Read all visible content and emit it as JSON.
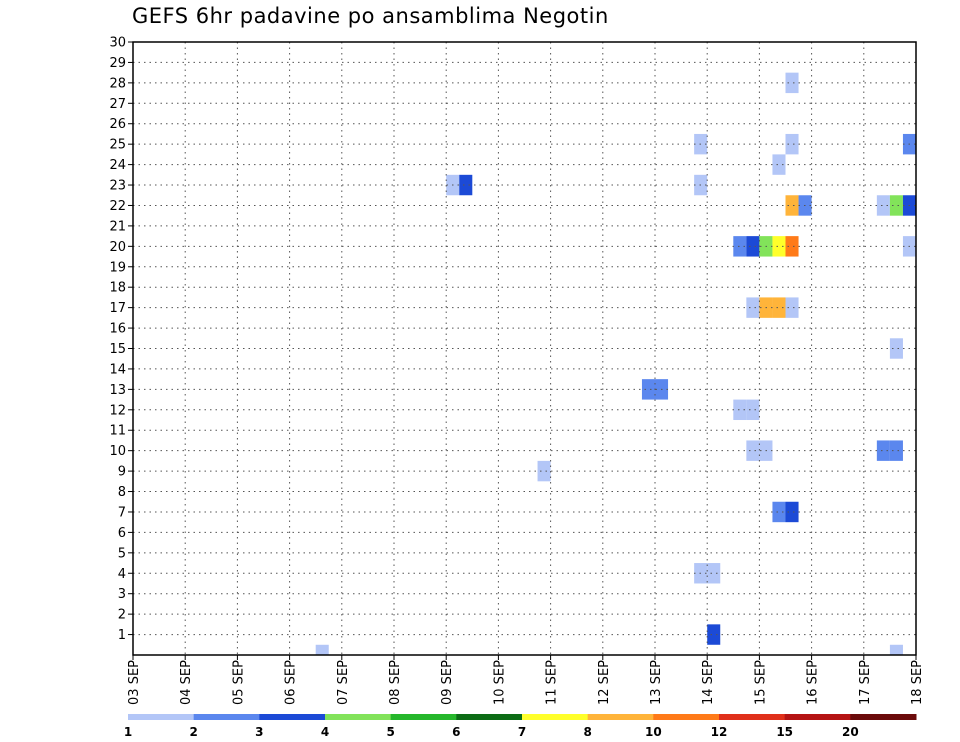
{
  "chart_data": {
    "type": "heatmap",
    "title": "GEFS 6hr padavine po ansamblima Negotin",
    "y_ticks": [
      "1",
      "2",
      "3",
      "4",
      "5",
      "6",
      "7",
      "8",
      "9",
      "10",
      "11",
      "12",
      "13",
      "14",
      "15",
      "16",
      "17",
      "18",
      "19",
      "20",
      "21",
      "22",
      "23",
      "24",
      "25",
      "26",
      "27",
      "28",
      "29",
      "30"
    ],
    "ylim": [
      0,
      30
    ],
    "x_ticks": [
      "03 SEP",
      "04 SEP",
      "05 SEP",
      "06 SEP",
      "07 SEP",
      "08 SEP",
      "09 SEP",
      "10 SEP",
      "11 SEP",
      "12 SEP",
      "13 SEP",
      "14 SEP",
      "15 SEP",
      "16 SEP",
      "17 SEP",
      "18 SEP"
    ],
    "grid": true,
    "colorbar": {
      "labels": [
        "1",
        "2",
        "3",
        "4",
        "5",
        "6",
        "7",
        "8",
        "10",
        "12",
        "15",
        "20"
      ],
      "colors": [
        "#b3c6f7",
        "#5b87ee",
        "#1c4ad6",
        "#82e35a",
        "#26b72b",
        "#0c6c15",
        "#ffff2a",
        "#ffb43a",
        "#ff7a18",
        "#e0301a",
        "#b51414",
        "#6b0b0b"
      ]
    },
    "cells": [
      {
        "time": "06 SEP 12Z",
        "member": 0,
        "value": 1
      },
      {
        "time": "09 SEP 00Z",
        "member": 23,
        "value": 1
      },
      {
        "time": "09 SEP 06Z",
        "member": 23,
        "value": 3
      },
      {
        "time": "10 SEP 18Z",
        "member": 9,
        "value": 1
      },
      {
        "time": "12 SEP 18Z",
        "member": 13,
        "value": 2
      },
      {
        "time": "13 SEP 00Z",
        "member": 13,
        "value": 2
      },
      {
        "time": "13 SEP 18Z",
        "member": 25,
        "value": 1
      },
      {
        "time": "13 SEP 18Z",
        "member": 23,
        "value": 1
      },
      {
        "time": "13 SEP 18Z",
        "member": 4,
        "value": 1
      },
      {
        "time": "14 SEP 00Z",
        "member": 4,
        "value": 1
      },
      {
        "time": "14 SEP 00Z",
        "member": 1,
        "value": 3
      },
      {
        "time": "14 SEP 12Z",
        "member": 20,
        "value": 2
      },
      {
        "time": "14 SEP 12Z",
        "member": 12,
        "value": 1
      },
      {
        "time": "14 SEP 18Z",
        "member": 20,
        "value": 3
      },
      {
        "time": "14 SEP 18Z",
        "member": 17,
        "value": 1
      },
      {
        "time": "14 SEP 18Z",
        "member": 12,
        "value": 1
      },
      {
        "time": "14 SEP 18Z",
        "member": 10,
        "value": 1
      },
      {
        "time": "15 SEP 00Z",
        "member": 20,
        "value": 4
      },
      {
        "time": "15 SEP 00Z",
        "member": 17,
        "value": 8
      },
      {
        "time": "15 SEP 00Z",
        "member": 10,
        "value": 1
      },
      {
        "time": "15 SEP 06Z",
        "member": 20,
        "value": 7
      },
      {
        "time": "15 SEP 06Z",
        "member": 24,
        "value": 1
      },
      {
        "time": "15 SEP 06Z",
        "member": 17,
        "value": 8
      },
      {
        "time": "15 SEP 06Z",
        "member": 7,
        "value": 2
      },
      {
        "time": "15 SEP 12Z",
        "member": 28,
        "value": 1
      },
      {
        "time": "15 SEP 12Z",
        "member": 25,
        "value": 1
      },
      {
        "time": "15 SEP 12Z",
        "member": 22,
        "value": 8
      },
      {
        "time": "15 SEP 12Z",
        "member": 20,
        "value": 11
      },
      {
        "time": "15 SEP 12Z",
        "member": 17,
        "value": 1
      },
      {
        "time": "15 SEP 12Z",
        "member": 7,
        "value": 3
      },
      {
        "time": "15 SEP 18Z",
        "member": 22,
        "value": 2
      },
      {
        "time": "17 SEP 06Z",
        "member": 22,
        "value": 1
      },
      {
        "time": "17 SEP 06Z",
        "member": 10,
        "value": 2
      },
      {
        "time": "17 SEP 12Z",
        "member": 22,
        "value": 4
      },
      {
        "time": "17 SEP 12Z",
        "member": 15,
        "value": 1
      },
      {
        "time": "17 SEP 12Z",
        "member": 10,
        "value": 2
      },
      {
        "time": "17 SEP 12Z",
        "member": 0,
        "value": 1
      },
      {
        "time": "17 SEP 18Z",
        "member": 25,
        "value": 2
      },
      {
        "time": "17 SEP 18Z",
        "member": 22,
        "value": 3
      },
      {
        "time": "17 SEP 18Z",
        "member": 20,
        "value": 1
      }
    ]
  }
}
